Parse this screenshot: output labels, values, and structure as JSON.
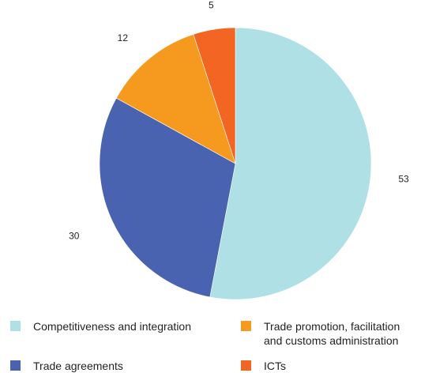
{
  "chart_data": {
    "type": "pie",
    "title": "",
    "slices": [
      {
        "label": "Competitiveness and integration",
        "value": 53,
        "value_label": "53",
        "color": "#afe0e5"
      },
      {
        "label": "Trade agreements",
        "value": 30,
        "value_label": "30",
        "color": "#4a63b0"
      },
      {
        "label": "Trade promotion, facilitation and customs administration",
        "value": 12,
        "value_label": "12",
        "color": "#f59a1e"
      },
      {
        "label": "ICTs",
        "value": 5,
        "value_label": "5",
        "color": "#f26522"
      }
    ],
    "legend_position": "bottom",
    "start_angle_deg": 0,
    "direction": "clockwise"
  },
  "legend": [
    {
      "label": "Competitiveness and integration",
      "color": "#afe0e5"
    },
    {
      "label": "Trade promotion, facilitation and customs administration",
      "color": "#f59a1e"
    },
    {
      "label": "Trade agreements",
      "color": "#4a63b0"
    },
    {
      "label": "ICTs",
      "color": "#f26522"
    }
  ]
}
